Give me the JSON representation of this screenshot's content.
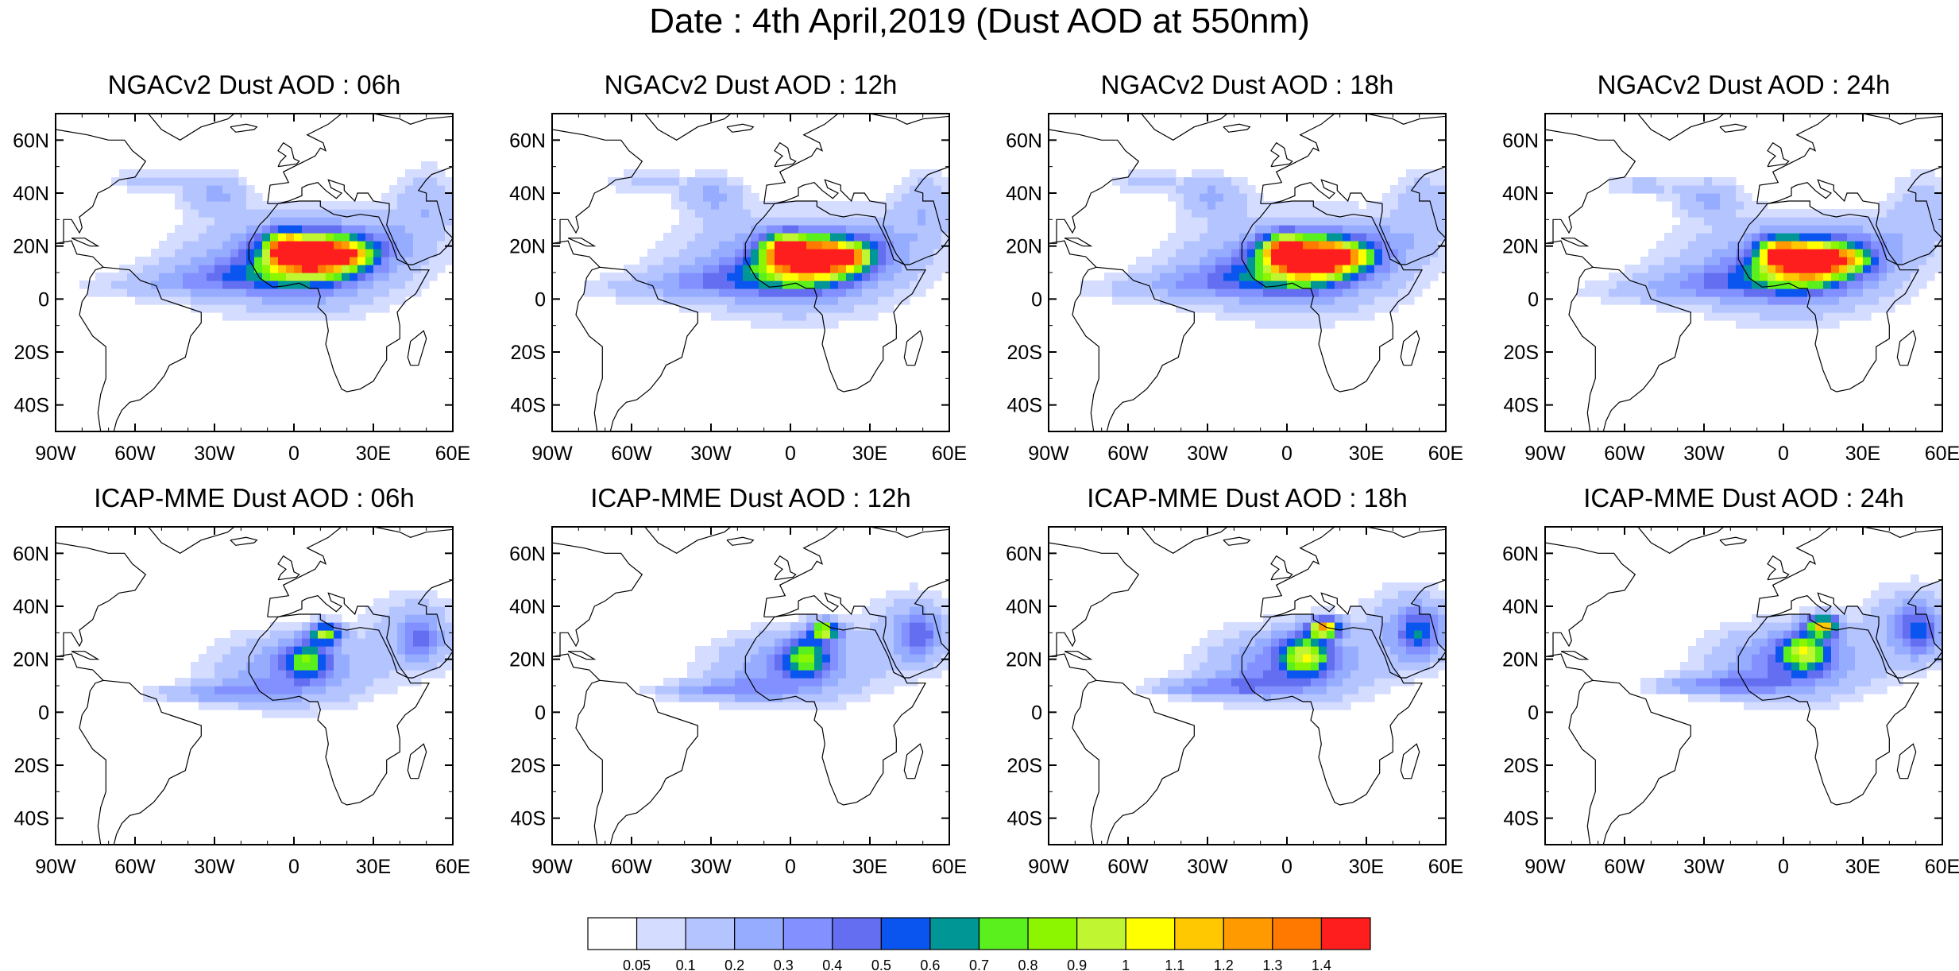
{
  "title": "Date : 4th April,2019 (Dust AOD at 550nm)",
  "lat_ticks": [
    "60N",
    "40N",
    "20N",
    "0",
    "20S",
    "40S"
  ],
  "lon_ticks": [
    "90W",
    "60W",
    "30W",
    "0",
    "30E",
    "60E"
  ],
  "panels": [
    {
      "title": "NGACv2 Dust AOD : 06h",
      "model": "NGACv2",
      "hour": "06h"
    },
    {
      "title": "NGACv2 Dust AOD : 12h",
      "model": "NGACv2",
      "hour": "12h"
    },
    {
      "title": "NGACv2 Dust AOD : 18h",
      "model": "NGACv2",
      "hour": "18h"
    },
    {
      "title": "NGACv2 Dust AOD : 24h",
      "model": "NGACv2",
      "hour": "24h"
    },
    {
      "title": "ICAP-MME Dust AOD : 06h",
      "model": "ICAP-MME",
      "hour": "06h"
    },
    {
      "title": "ICAP-MME Dust AOD : 12h",
      "model": "ICAP-MME",
      "hour": "12h"
    },
    {
      "title": "ICAP-MME Dust AOD : 18h",
      "model": "ICAP-MME",
      "hour": "18h"
    },
    {
      "title": "ICAP-MME Dust AOD : 24h",
      "model": "ICAP-MME",
      "hour": "24h"
    }
  ],
  "colorbar": {
    "labels": [
      "0.05",
      "0.1",
      "0.2",
      "0.3",
      "0.4",
      "0.5",
      "0.6",
      "0.7",
      "0.8",
      "0.9",
      "1",
      "1.1",
      "1.2",
      "1.3",
      "1.4"
    ],
    "colors": [
      "#ffffff",
      "#d4dcff",
      "#b4c4ff",
      "#96acff",
      "#8291ff",
      "#646ef0",
      "#0a55f0",
      "#009696",
      "#5af01e",
      "#8cf500",
      "#c0f532",
      "#ffff00",
      "#ffc800",
      "#ff9a00",
      "#ff7800",
      "#ff1e1e"
    ]
  }
}
